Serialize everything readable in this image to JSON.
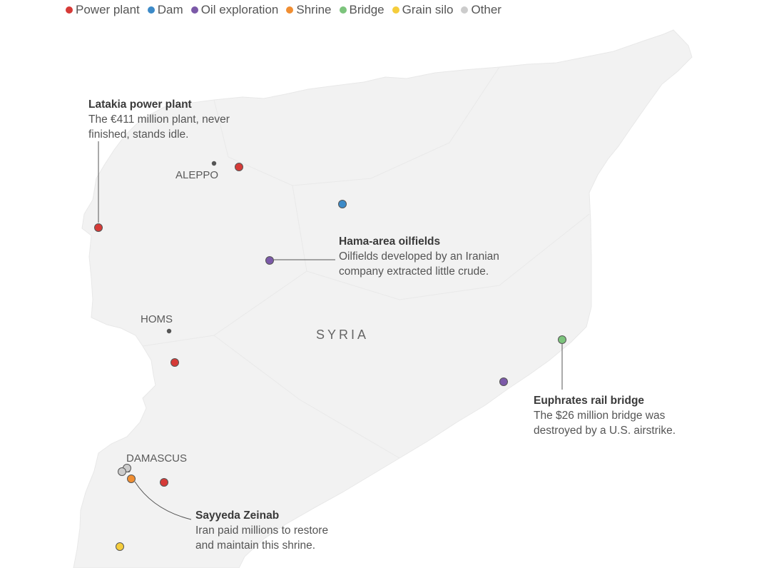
{
  "legend": {
    "items": [
      {
        "label": "Power plant",
        "color": "#d63a37"
      },
      {
        "label": "Dam",
        "color": "#3c8ac8"
      },
      {
        "label": "Oil exploration",
        "color": "#7b59a8"
      },
      {
        "label": "Shrine",
        "color": "#f08e32"
      },
      {
        "label": "Bridge",
        "color": "#7cc47c"
      },
      {
        "label": "Grain silo",
        "color": "#f5cd3c"
      },
      {
        "label": "Other",
        "color": "#cccccc"
      }
    ]
  },
  "map": {
    "country_label": "SYRIA",
    "cities": [
      "ALEPPO",
      "HOMS",
      "DAMASCUS"
    ]
  },
  "annotations": {
    "latakia": {
      "title": "Latakia power plant",
      "line1": "The €411 million plant, never",
      "line2": "finished, stands idle."
    },
    "hama": {
      "title": "Hama-area oilfields",
      "line1": "Oilfields developed by an Iranian",
      "line2": "company extracted little crude."
    },
    "euphrates": {
      "title": "Euphrates rail bridge",
      "line1": "The $26 million bridge was",
      "line2": "destroyed by a U.S. airstrike."
    },
    "sayyeda": {
      "title": "Sayyeda Zeinab",
      "line1": "Iran paid millions to restore",
      "line2": "and maintain this shrine."
    }
  }
}
